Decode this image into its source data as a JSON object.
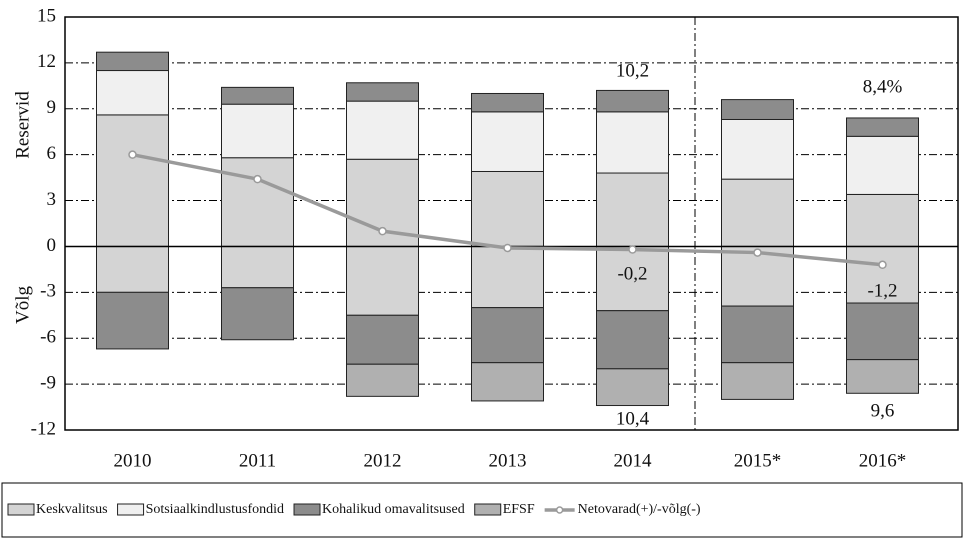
{
  "chart_data": {
    "type": "stacked-bar-line",
    "y_label_top": "Reservid",
    "y_label_bottom": "Võlg",
    "categories": [
      "2010",
      "2011",
      "2012",
      "2013",
      "2014",
      "2015*",
      "2016*"
    ],
    "ylim": [
      -12,
      15
    ],
    "yticks": [
      -12,
      -9,
      -6,
      -3,
      0,
      3,
      6,
      9,
      12,
      15
    ],
    "grid": true,
    "series": [
      {
        "name": "Keskvalitsus",
        "color": "#d4d4d4",
        "values": [
          8.6,
          5.8,
          5.7,
          4.9,
          4.8,
          4.4,
          3.4
        ],
        "negative": [
          -3.0,
          -2.7,
          -4.5,
          -4.0,
          -4.2,
          -3.9,
          -3.7
        ]
      },
      {
        "name": "Sotsiaalkindlustusfondid",
        "color": "#f0f0f0",
        "values": [
          2.9,
          3.5,
          3.8,
          3.9,
          4.0,
          3.9,
          3.8
        ]
      },
      {
        "name": "Kohalikud omavalitsused",
        "color": "#8c8c8c",
        "values": [
          1.2,
          1.1,
          1.2,
          1.2,
          1.4,
          1.3,
          1.2
        ],
        "negative": [
          -3.7,
          -3.4,
          -3.2,
          -3.6,
          -3.8,
          -3.7,
          -3.7
        ]
      },
      {
        "name": "EFSF",
        "color": "#b0b0b0",
        "negative": [
          null,
          null,
          -2.1,
          -2.5,
          -2.4,
          -2.4,
          -2.2
        ]
      },
      {
        "name": "Netovarad(+)/-võlg(-)",
        "type": "line",
        "color": "#9a9a9a",
        "values": [
          6.0,
          4.4,
          1.0,
          -0.1,
          -0.2,
          -0.4,
          -1.2
        ]
      }
    ],
    "annotations": [
      "10,2",
      "8,4%",
      "10,4",
      "9,6",
      "-0,2",
      "-1,2"
    ]
  }
}
